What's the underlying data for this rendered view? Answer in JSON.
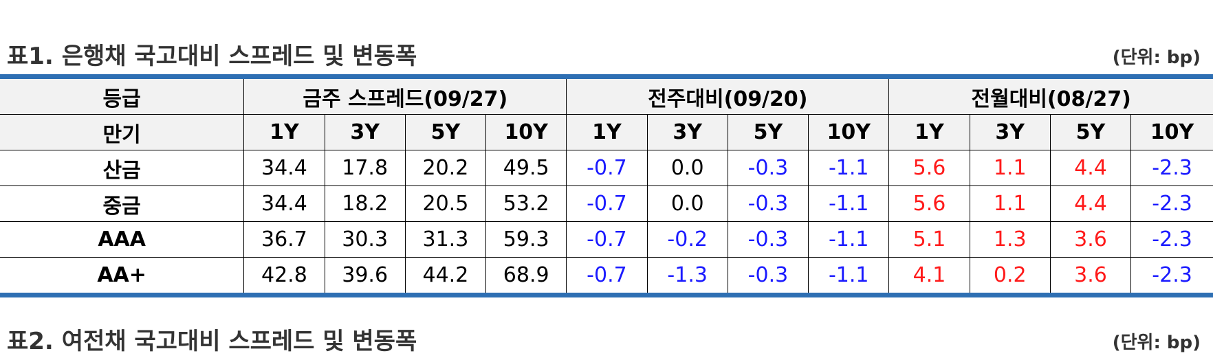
{
  "table1": {
    "title": "표1. 은행채 국고대비 스프레드 및 변동폭",
    "unit": "(단위: bp)",
    "header_grade": "등급",
    "header_maturity": "만기",
    "groups": [
      "금주 스프레드(09/27)",
      "전주대비(09/20)",
      "전월대비(08/27)"
    ],
    "maturities": [
      "1Y",
      "3Y",
      "5Y",
      "10Y",
      "1Y",
      "3Y",
      "5Y",
      "10Y",
      "1Y",
      "3Y",
      "5Y",
      "10Y"
    ],
    "rows": [
      {
        "label": "산금",
        "values": [
          "34.4",
          "17.8",
          "20.2",
          "49.5",
          "-0.7",
          "0.0",
          "-0.3",
          "-1.1",
          "5.6",
          "1.1",
          "4.4",
          "-2.3"
        ]
      },
      {
        "label": "중금",
        "values": [
          "34.4",
          "18.2",
          "20.5",
          "53.2",
          "-0.7",
          "0.0",
          "-0.3",
          "-1.1",
          "5.6",
          "1.1",
          "4.4",
          "-2.3"
        ]
      },
      {
        "label": "AAA",
        "values": [
          "36.7",
          "30.3",
          "31.3",
          "59.3",
          "-0.7",
          "-0.2",
          "-0.3",
          "-1.1",
          "5.1",
          "1.3",
          "3.6",
          "-2.3"
        ]
      },
      {
        "label": "AA+",
        "values": [
          "42.8",
          "39.6",
          "44.2",
          "68.9",
          "-0.7",
          "-1.3",
          "-0.3",
          "-1.1",
          "4.1",
          "0.2",
          "3.6",
          "-2.3"
        ]
      }
    ]
  },
  "table2": {
    "title": "표2. 여전채 국고대비 스프레드 및 변동폭",
    "unit": "(단위: bp)"
  },
  "colors": {
    "accent_bar": "#2e6fb3",
    "negative": "#1a1aff",
    "positive": "#ff1a1a",
    "header_bg": "#f2f2f2"
  }
}
